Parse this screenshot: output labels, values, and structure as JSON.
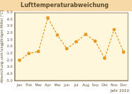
{
  "chart_data": {
    "type": "line",
    "title": "Lufttemperaturabweichung",
    "x_label": "Jahr 2010",
    "y_label": "Abweichung vom langjährigen Mittel [°C]",
    "categories": [
      "Jan",
      "Feb",
      "Mar",
      "Apr",
      "Mai",
      "Jun",
      "Jul",
      "Aug",
      "Sep",
      "Okt",
      "Nov",
      "Dec"
    ],
    "values": [
      -2.0,
      -1.0,
      -0.7,
      4.2,
      1.7,
      -0.3,
      0.7,
      1.8,
      0.8,
      -1.7,
      2.5,
      -0.8
    ],
    "color": "#e8961e",
    "marker": "circle",
    "line_style": "dashed",
    "ylim": [
      -5,
      5
    ],
    "yticks": [
      {
        "value": -5,
        "label": "-5.0"
      },
      {
        "value": -4,
        "label": "-4.0"
      },
      {
        "value": -3,
        "label": "-3.0"
      },
      {
        "value": -2,
        "label": "-2.0"
      },
      {
        "value": -1,
        "label": "-1.0"
      },
      {
        "value": 0,
        "label": "0.0"
      },
      {
        "value": 1,
        "label": "1.0"
      },
      {
        "value": 2,
        "label": "2.0"
      },
      {
        "value": 3,
        "label": "3.0"
      },
      {
        "value": 4,
        "label": "4.0"
      },
      {
        "value": 5,
        "label": "5.0"
      }
    ],
    "grid": false
  }
}
